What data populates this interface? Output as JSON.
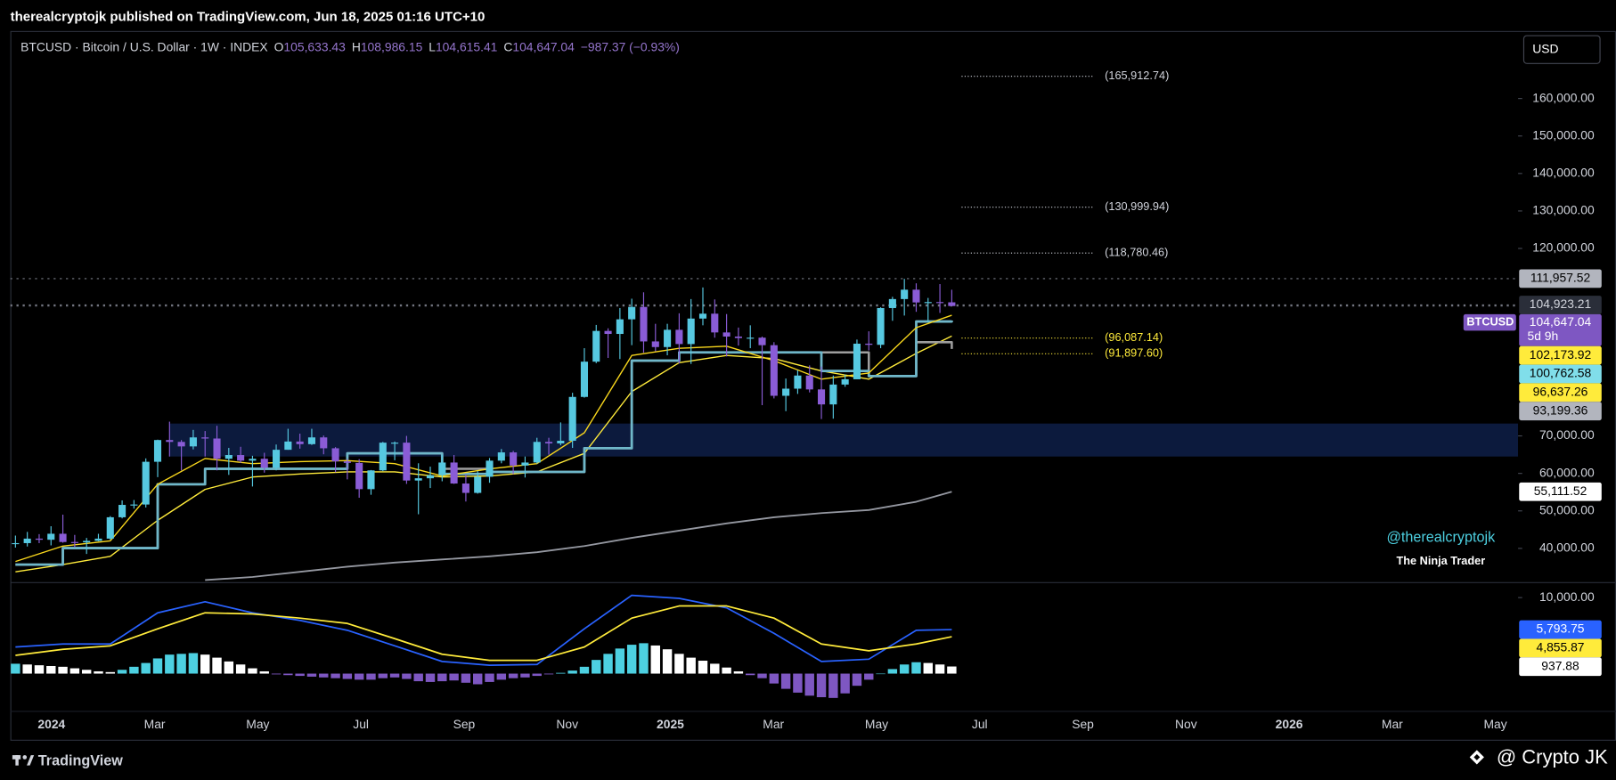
{
  "header": {
    "text": "therealcryptojk published on TradingView.com, Jun 18, 2025 01:16 UTC+10"
  },
  "legend": {
    "symbol": "BTCUSD · Bitcoin / U.S. Dollar · 1W · INDEX",
    "ohlc": [
      {
        "key": "O",
        "value": "105,633.43"
      },
      {
        "key": "H",
        "value": "108,986.15"
      },
      {
        "key": "L",
        "value": "104,615.41"
      },
      {
        "key": "C",
        "value": "104,647.04"
      }
    ],
    "change": "−987.37 (−0.93%)"
  },
  "currency_button": "USD",
  "watermark": [
    "@therealcryptojk",
    "The Ninja Trader"
  ],
  "footer": {
    "brand": "TradingView",
    "credit": "@ Crypto JK"
  },
  "chart_data": [
    {
      "type": "candlestick",
      "x_labels": [
        {
          "label": "2024",
          "bold": true
        },
        {
          "label": "Mar"
        },
        {
          "label": "May"
        },
        {
          "label": "Jul"
        },
        {
          "label": "Sep"
        },
        {
          "label": "Nov"
        },
        {
          "label": "2025",
          "bold": true
        },
        {
          "label": "Mar"
        },
        {
          "label": "May"
        },
        {
          "label": "Jul"
        },
        {
          "label": "Sep"
        },
        {
          "label": "Nov"
        },
        {
          "label": "2026",
          "bold": true
        },
        {
          "label": "Mar"
        },
        {
          "label": "May"
        }
      ],
      "ylim": [
        31000,
        178000
      ],
      "yticks": [
        {
          "value": 40000,
          "label": "40,000.00"
        },
        {
          "value": 50000,
          "label": "50,000.00"
        },
        {
          "value": 60000,
          "label": "60,000.00"
        },
        {
          "value": 70000,
          "label": "70,000.00"
        },
        {
          "value": 120000,
          "label": "120,000.00"
        },
        {
          "value": 130000,
          "label": "130,000.00"
        },
        {
          "value": 140000,
          "label": "140,000.00"
        },
        {
          "value": 150000,
          "label": "150,000.00"
        },
        {
          "value": 160000,
          "label": "160,000.00"
        }
      ],
      "up_color": "#56c8e0",
      "down_color": "#8a5cd6",
      "candles": [
        [
          41200,
          43400,
          40200,
          41400
        ],
        [
          41400,
          44400,
          40500,
          42600
        ],
        [
          42600,
          43800,
          41400,
          42300
        ],
        [
          42300,
          45900,
          40800,
          43900
        ],
        [
          43900,
          49000,
          41500,
          41700
        ],
        [
          41700,
          43600,
          40300,
          41600
        ],
        [
          41600,
          42800,
          38500,
          42000
        ],
        [
          42000,
          43900,
          41900,
          42600
        ],
        [
          42600,
          48600,
          42300,
          48300
        ],
        [
          48300,
          52800,
          48000,
          51600
        ],
        [
          51600,
          52900,
          50600,
          51700
        ],
        [
          51700,
          64000,
          50900,
          63100
        ],
        [
          63100,
          69000,
          59000,
          68900
        ],
        [
          68900,
          73800,
          64500,
          68400
        ],
        [
          68400,
          68900,
          60800,
          67200
        ],
        [
          67200,
          71600,
          66400,
          69600
        ],
        [
          69600,
          71300,
          64500,
          69300
        ],
        [
          69300,
          72700,
          60800,
          63900
        ],
        [
          63900,
          66800,
          59600,
          64900
        ],
        [
          64900,
          67100,
          62800,
          63400
        ],
        [
          63400,
          64700,
          56500,
          63900
        ],
        [
          63900,
          65500,
          60200,
          61500
        ],
        [
          61500,
          67700,
          60800,
          66300
        ],
        [
          66300,
          71900,
          66300,
          68500
        ],
        [
          68500,
          70600,
          66600,
          67800
        ],
        [
          67800,
          71900,
          67600,
          69600
        ],
        [
          69600,
          70100,
          65100,
          66700
        ],
        [
          66700,
          67000,
          60300,
          63200
        ],
        [
          63200,
          63900,
          58400,
          62800
        ],
        [
          62800,
          63800,
          53500,
          55800
        ],
        [
          55800,
          60900,
          54300,
          60800
        ],
        [
          60800,
          68400,
          60600,
          68200
        ],
        [
          68200,
          68500,
          63500,
          68200
        ],
        [
          68200,
          70000,
          57200,
          58100
        ],
        [
          58100,
          62700,
          49100,
          58700
        ],
        [
          58700,
          61800,
          56100,
          59500
        ],
        [
          59500,
          65000,
          57900,
          62900
        ],
        [
          62900,
          64900,
          57200,
          57300
        ],
        [
          57300,
          59800,
          52500,
          54800
        ],
        [
          54800,
          60600,
          54600,
          59100
        ],
        [
          59100,
          64100,
          57500,
          63400
        ],
        [
          63400,
          66500,
          62700,
          65600
        ],
        [
          65600,
          66000,
          59800,
          62100
        ],
        [
          62100,
          64500,
          58900,
          62900
        ],
        [
          62900,
          69500,
          62600,
          68400
        ],
        [
          68400,
          69500,
          65000,
          68000
        ],
        [
          68000,
          73600,
          67500,
          68700
        ],
        [
          68700,
          81500,
          66800,
          80400
        ],
        [
          80400,
          93400,
          80200,
          89800
        ],
        [
          89800,
          99600,
          89400,
          98000
        ],
        [
          98000,
          98700,
          90800,
          97200
        ],
        [
          97200,
          104100,
          90500,
          101100
        ],
        [
          101100,
          106600,
          94200,
          104400
        ],
        [
          104400,
          108300,
          92200,
          95200
        ],
        [
          95200,
          99900,
          92600,
          93700
        ],
        [
          93700,
          99900,
          91500,
          98300
        ],
        [
          98300,
          102700,
          89300,
          94500
        ],
        [
          94500,
          106500,
          89200,
          101300
        ],
        [
          101300,
          109600,
          99500,
          102600
        ],
        [
          102600,
          106400,
          96200,
          97600
        ],
        [
          97600,
          102500,
          91200,
          96500
        ],
        [
          96500,
          98900,
          94100,
          96100
        ],
        [
          96100,
          99500,
          93400,
          96200
        ],
        [
          96200,
          96500,
          78200,
          94200
        ],
        [
          94200,
          95000,
          80000,
          80700
        ],
        [
          80700,
          85300,
          76600,
          82600
        ],
        [
          82600,
          87500,
          81200,
          86100
        ],
        [
          86100,
          88800,
          81600,
          82400
        ],
        [
          82400,
          88500,
          74500,
          78400
        ],
        [
          78400,
          86100,
          74600,
          83700
        ],
        [
          83700,
          86400,
          83100,
          85100
        ],
        [
          85100,
          95700,
          85100,
          94600
        ],
        [
          94600,
          97900,
          92800,
          94300
        ],
        [
          94300,
          104300,
          93400,
          104100
        ],
        [
          104100,
          107100,
          100700,
          106500
        ],
        [
          106500,
          111900,
          102100,
          109000
        ],
        [
          109000,
          110700,
          103100,
          105600
        ],
        [
          105600,
          106800,
          100400,
          105700
        ],
        [
          105700,
          110500,
          102800,
          105600
        ],
        [
          105633.43,
          108986.15,
          104615.41,
          104647.04
        ]
      ],
      "line_x": [
        0,
        4,
        8,
        12,
        16,
        20,
        24,
        28,
        32,
        36,
        40,
        44,
        48,
        52,
        56,
        60,
        64,
        68,
        72,
        76,
        79
      ],
      "series": [
        {
          "color": "#9598a1",
          "width": 1.6,
          "values": [
            null,
            null,
            null,
            null,
            31550,
            32370,
            33740,
            35120,
            36220,
            37040,
            37870,
            38970,
            40620,
            42810,
            44740,
            46660,
            48300,
            49410,
            50230,
            52430,
            55111.52
          ],
          "end_label": "55,111.52",
          "label_color": "#ffffff",
          "label_text": "#000000"
        },
        {
          "color": "#ffeb3b",
          "width": 1.2,
          "values": [
            33740,
            35670,
            37870,
            47480,
            55730,
            59030,
            59850,
            60400,
            60400,
            59030,
            59300,
            60400,
            65340,
            81830,
            89530,
            91450,
            90620,
            87330,
            85130,
            92000,
            96637.26
          ],
          "end_label": "96,637.26",
          "label_color": "#ffeb3b",
          "label_text": "#000000"
        },
        {
          "color": "#9e9e9e",
          "width": 2.2,
          "step": true,
          "values": [
            35670,
            40070,
            40070,
            57100,
            61220,
            61220,
            61220,
            65340,
            65340,
            61220,
            60400,
            60400,
            66720,
            90070,
            92280,
            92280,
            92280,
            92280,
            85950,
            95000,
            93199.36
          ],
          "end_label": "93,199.36",
          "label_color": "#b2b5be",
          "label_text": "#000000"
        },
        {
          "color": "#6fb7c9",
          "width": 2.4,
          "step": true,
          "values": [
            35670,
            40070,
            40070,
            57100,
            61220,
            61220,
            61220,
            65340,
            65340,
            59850,
            60400,
            60400,
            66720,
            90070,
            92280,
            92280,
            92280,
            87330,
            85950,
            100520,
            100762.58
          ],
          "end_label": "100,762.58",
          "label_color": "#80deea",
          "label_text": "#000000"
        },
        {
          "color": "#f9d71c",
          "width": 1.2,
          "values": [
            36490,
            40620,
            41990,
            57100,
            63970,
            62600,
            63150,
            63420,
            62600,
            59300,
            61220,
            62600,
            70840,
            91450,
            93370,
            93920,
            90070,
            85130,
            86780,
            98870,
            102173.92
          ],
          "end_label": "102,173.92",
          "label_color": "#ffeb3b",
          "label_text": "#000000"
        }
      ],
      "zone": {
        "range": [
          64500,
          73300
        ],
        "start": 13,
        "color": "#0c1a3d"
      },
      "levels": [
        {
          "value": 165912.74,
          "label": "(165,912.74)",
          "color": "#d1d4dc"
        },
        {
          "value": 130999.94,
          "label": "(130,999.94)",
          "color": "#d1d4dc"
        },
        {
          "value": 118780.46,
          "label": "(118,780.46)",
          "color": "#d1d4dc"
        },
        {
          "value": 96087.14,
          "label": "(96,087.14)",
          "color": "#ffeb3b"
        },
        {
          "value": 91897.6,
          "label": "(91,897.60)",
          "color": "#ffeb3b"
        }
      ],
      "price_lines": [
        {
          "value": 111957.52,
          "label": "111,957.52",
          "color": "#b2b5be",
          "text_color": "#000000"
        },
        {
          "value": 104923.21,
          "label": "104,923.21",
          "color": "#2a2e39",
          "text_color": "#d1d4dc"
        },
        {
          "value": 104647.04,
          "label": "104,647.04",
          "tag": "BTCUSD",
          "countdown": "5d 9h",
          "color": "#7e57c2",
          "text_color": "#ffffff"
        }
      ]
    },
    {
      "type": "macd",
      "ylim": [
        -4900,
        11900
      ],
      "yticks": [
        {
          "value": 10000,
          "label": "10,000.00"
        }
      ],
      "histogram": [
        1300,
        1200,
        1100,
        1000,
        900,
        700,
        500,
        300,
        200,
        500,
        900,
        1400,
        2000,
        2500,
        2600,
        2700,
        2500,
        2100,
        1600,
        1200,
        700,
        300,
        -100,
        -200,
        -300,
        -400,
        -500,
        -600,
        -700,
        -800,
        -800,
        -600,
        -500,
        -700,
        -1000,
        -1100,
        -1000,
        -900,
        -1200,
        -1400,
        -1100,
        -800,
        -600,
        -500,
        -300,
        -100,
        100,
        400,
        900,
        1800,
        2600,
        3300,
        3800,
        4000,
        3700,
        3200,
        2600,
        2100,
        1700,
        1300,
        800,
        300,
        -200,
        -600,
        -1300,
        -2000,
        -2500,
        -2900,
        -3100,
        -3200,
        -2600,
        -1600,
        -800,
        0,
        600,
        1200,
        1500,
        1400,
        1200,
        937.88
      ],
      "histogram_end_label": "937.88",
      "line_x": [
        0,
        4,
        8,
        12,
        16,
        20,
        24,
        28,
        32,
        36,
        40,
        44,
        48,
        52,
        56,
        60,
        64,
        68,
        72,
        76,
        79
      ],
      "series": [
        {
          "color": "#2962ff",
          "values": [
            3500,
            3900,
            3900,
            8000,
            9450,
            8000,
            7000,
            5700,
            3650,
            1600,
            1100,
            1200,
            5900,
            10300,
            9900,
            8650,
            5300,
            1600,
            1900,
            5700,
            5793.75
          ],
          "end_label": "5,793.75",
          "label_color": "#2962ff",
          "label_text": "#ffffff"
        },
        {
          "color": "#ffeb3b",
          "values": [
            2400,
            3200,
            3650,
            5900,
            8000,
            7850,
            7300,
            6600,
            4600,
            2550,
            1750,
            1750,
            3500,
            7300,
            8900,
            8900,
            7300,
            3900,
            3000,
            3900,
            4855.87
          ],
          "end_label": "4,855.87",
          "label_color": "#ffeb3b",
          "label_text": "#000000"
        }
      ]
    }
  ]
}
